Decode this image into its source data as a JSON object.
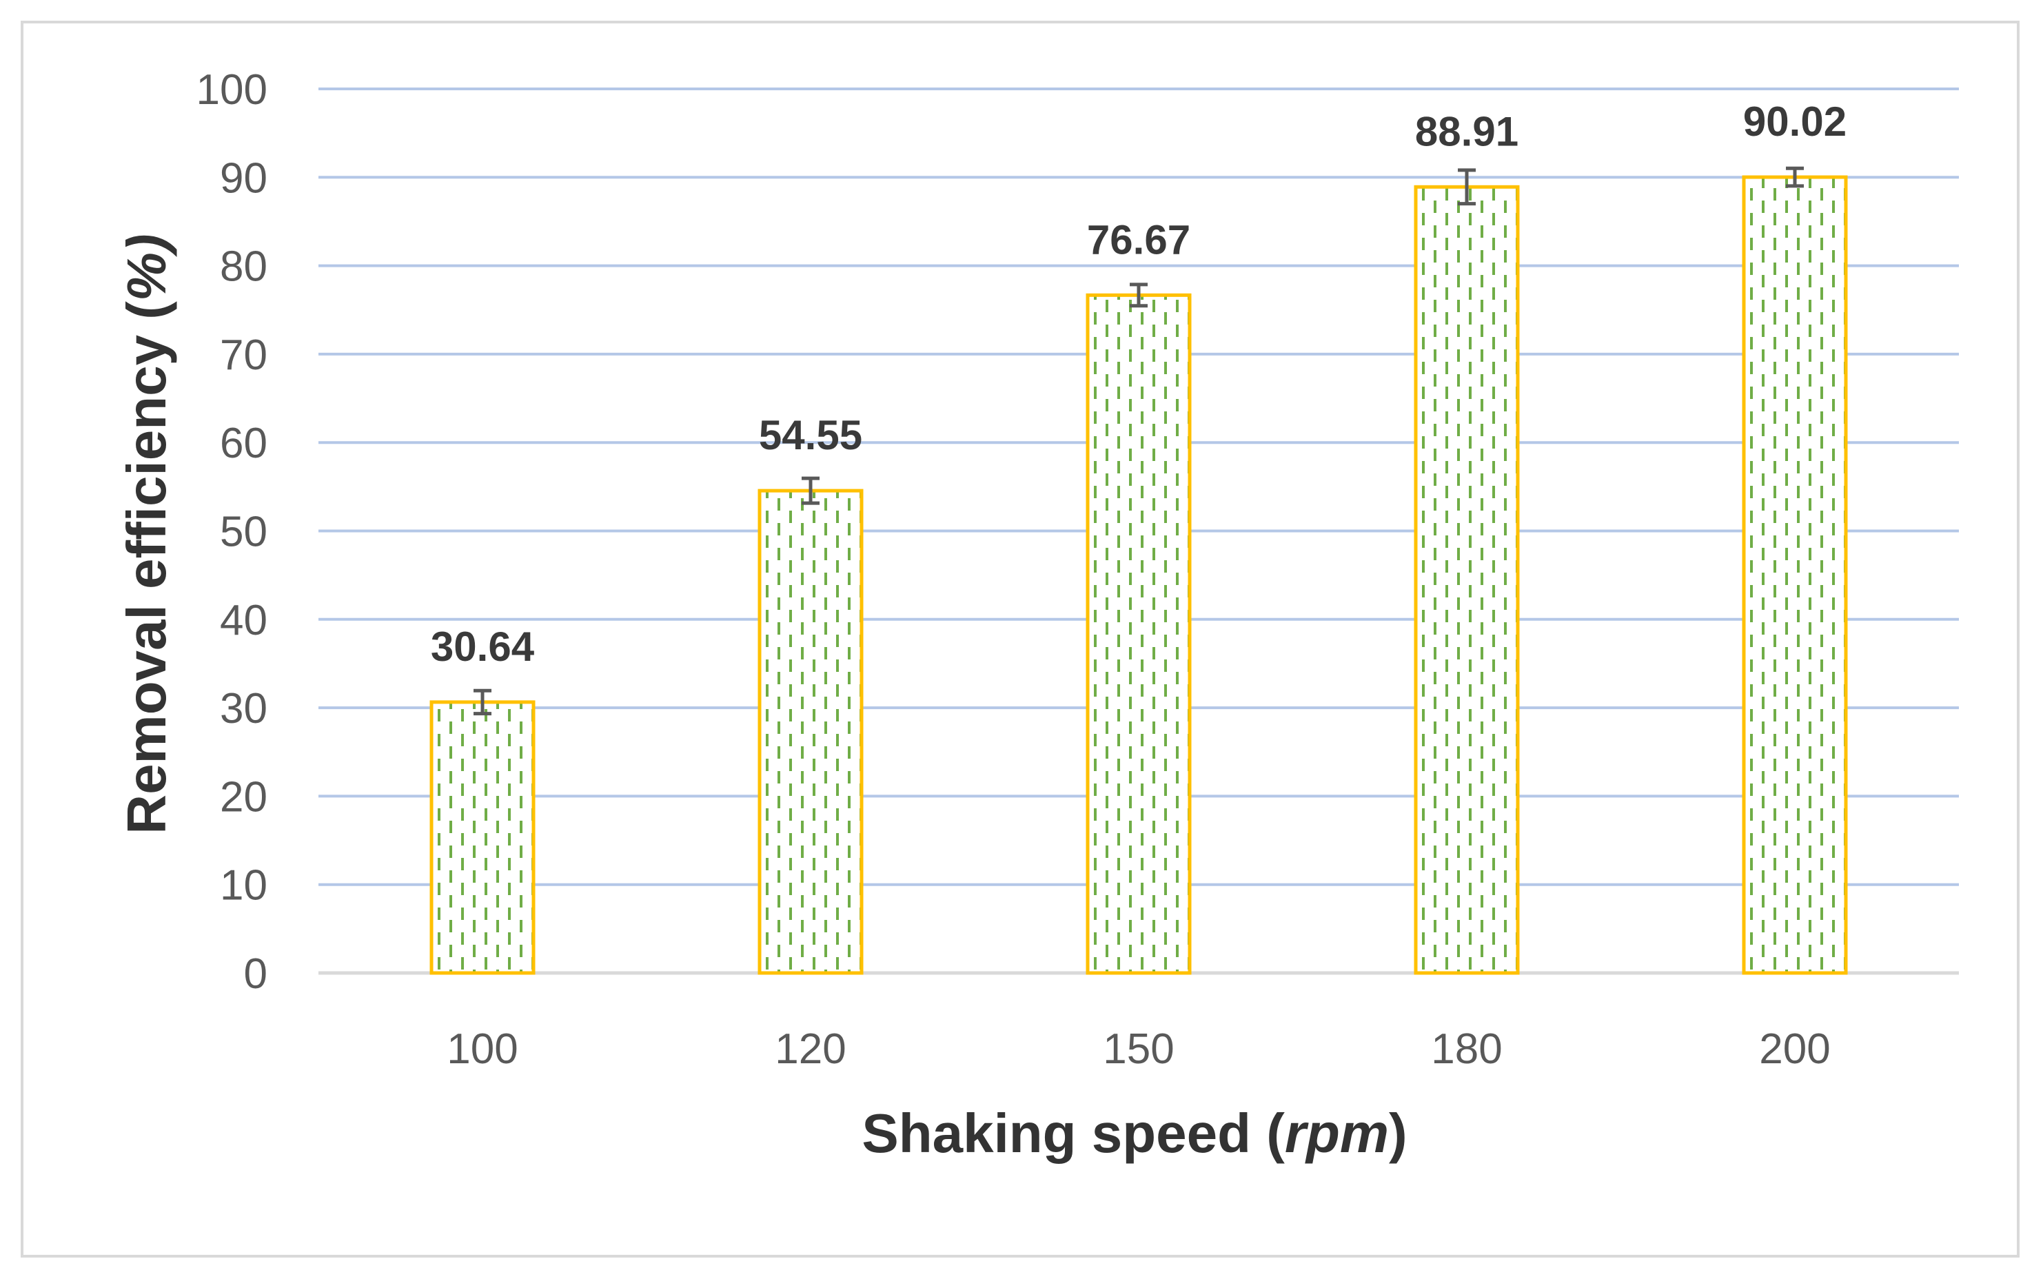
{
  "chart_data": {
    "type": "bar",
    "title": "",
    "xlabel": "Shaking speed",
    "xlabel_unit": "rpm",
    "ylabel": "Removal efficiency",
    "ylabel_unit": "%",
    "categories": [
      "100",
      "120",
      "150",
      "180",
      "200"
    ],
    "values": [
      30.64,
      54.55,
      76.67,
      88.91,
      90.02
    ],
    "value_labels": [
      "30.64",
      "54.55",
      "76.67",
      "88.91",
      "90.02"
    ],
    "error": [
      1.3,
      1.4,
      1.2,
      1.9,
      1.0
    ],
    "ylim": [
      0,
      100
    ],
    "yticks": [
      "0",
      "10",
      "20",
      "30",
      "40",
      "50",
      "60",
      "70",
      "80",
      "90",
      "100"
    ],
    "grid": true,
    "colors": {
      "bar_border": "#FFC000",
      "bar_pattern": "#70AD47",
      "gridline": "#B4C7E7",
      "axis": "#D9D9D9",
      "error_bar": "#595959"
    }
  }
}
